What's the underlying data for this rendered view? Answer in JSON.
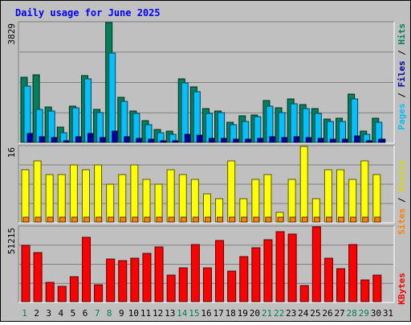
{
  "title": "Daily usage for June 2025",
  "colors": {
    "background": "#c0c0c0",
    "title": "#0000ff",
    "hits": "#00805c",
    "files": "#00c0ff",
    "pages": "#0000a0",
    "visits": "#ffff00",
    "sites": "#ff8000",
    "kbytes": "#ff0000",
    "weekend_day": "#00805c",
    "weekday": "#000000"
  },
  "chart_data": [
    {
      "type": "bar",
      "panel": "hits-files-pages",
      "max_label": "3829",
      "ylim": [
        0,
        3829
      ],
      "x": [
        1,
        2,
        3,
        4,
        5,
        6,
        7,
        8,
        9,
        10,
        11,
        12,
        13,
        14,
        15,
        16,
        17,
        18,
        19,
        20,
        21,
        22,
        23,
        24,
        25,
        26,
        27,
        28,
        29,
        30
      ],
      "series": [
        {
          "name": "Hits",
          "values": [
            2070,
            2150,
            1130,
            480,
            1160,
            2140,
            1060,
            3829,
            1430,
            1000,
            690,
            400,
            360,
            2030,
            1780,
            1080,
            1000,
            640,
            850,
            880,
            1340,
            1110,
            1390,
            1200,
            1080,
            750,
            760,
            1540,
            350,
            760
          ]
        },
        {
          "name": "Files",
          "values": [
            1790,
            1060,
            1000,
            320,
            1100,
            2040,
            950,
            2840,
            1300,
            930,
            570,
            310,
            260,
            1910,
            1630,
            920,
            940,
            560,
            680,
            820,
            1150,
            950,
            1240,
            1070,
            930,
            680,
            680,
            1380,
            260,
            640
          ]
        },
        {
          "name": "Pages",
          "values": [
            290,
            170,
            150,
            50,
            180,
            270,
            160,
            370,
            190,
            140,
            100,
            60,
            50,
            260,
            230,
            140,
            140,
            90,
            110,
            120,
            170,
            150,
            180,
            160,
            140,
            110,
            110,
            200,
            50,
            110
          ]
        }
      ]
    },
    {
      "type": "bar",
      "panel": "visits-sites",
      "max_label": "16",
      "ylim": [
        0,
        16
      ],
      "x": [
        1,
        2,
        3,
        4,
        5,
        6,
        7,
        8,
        9,
        10,
        11,
        12,
        13,
        14,
        15,
        16,
        17,
        18,
        19,
        20,
        21,
        22,
        23,
        24,
        25,
        26,
        27,
        28,
        29,
        30
      ],
      "series": [
        {
          "name": "Visits",
          "values": [
            11,
            13,
            10,
            10,
            12,
            11,
            12,
            8,
            10,
            12,
            9,
            8,
            11,
            10,
            9,
            6,
            5,
            13,
            5,
            9,
            10,
            2,
            9,
            16,
            5,
            11,
            11,
            9,
            13,
            10
          ]
        },
        {
          "name": "Sites",
          "values": [
            1,
            1,
            1,
            1,
            1,
            1,
            1,
            1,
            1,
            1,
            1,
            1,
            1,
            1,
            1,
            1,
            1,
            1,
            1,
            1,
            1,
            1,
            1,
            1,
            1,
            1,
            1,
            1,
            1,
            1
          ]
        }
      ]
    },
    {
      "type": "bar",
      "panel": "kbytes",
      "max_label": "51215",
      "ylim": [
        0,
        51215
      ],
      "x": [
        1,
        2,
        3,
        4,
        5,
        6,
        7,
        8,
        9,
        10,
        11,
        12,
        13,
        14,
        15,
        16,
        17,
        18,
        19,
        20,
        21,
        22,
        23,
        24,
        25,
        26,
        27,
        28,
        29,
        30
      ],
      "series": [
        {
          "name": "KBytes",
          "values": [
            38400,
            33700,
            13100,
            10600,
            17300,
            44100,
            11600,
            29100,
            28200,
            29500,
            32800,
            37200,
            17900,
            23000,
            39100,
            23200,
            41800,
            21100,
            31100,
            37000,
            42400,
            48100,
            46000,
            10900,
            51215,
            30000,
            22400,
            39200,
            15000,
            18000
          ]
        }
      ]
    }
  ],
  "x_labels": [
    {
      "day": "1",
      "weekend": true
    },
    {
      "day": "2",
      "weekend": false
    },
    {
      "day": "3",
      "weekend": false
    },
    {
      "day": "4",
      "weekend": false
    },
    {
      "day": "5",
      "weekend": false
    },
    {
      "day": "6",
      "weekend": false
    },
    {
      "day": "7",
      "weekend": true
    },
    {
      "day": "8",
      "weekend": true
    },
    {
      "day": "9",
      "weekend": false
    },
    {
      "day": "10",
      "weekend": false
    },
    {
      "day": "11",
      "weekend": false
    },
    {
      "day": "12",
      "weekend": false
    },
    {
      "day": "13",
      "weekend": false
    },
    {
      "day": "14",
      "weekend": true
    },
    {
      "day": "15",
      "weekend": true
    },
    {
      "day": "16",
      "weekend": false
    },
    {
      "day": "17",
      "weekend": false
    },
    {
      "day": "18",
      "weekend": false
    },
    {
      "day": "19",
      "weekend": false
    },
    {
      "day": "20",
      "weekend": false
    },
    {
      "day": "21",
      "weekend": true
    },
    {
      "day": "22",
      "weekend": true
    },
    {
      "day": "23",
      "weekend": false
    },
    {
      "day": "24",
      "weekend": false
    },
    {
      "day": "25",
      "weekend": false
    },
    {
      "day": "26",
      "weekend": false
    },
    {
      "day": "27",
      "weekend": false
    },
    {
      "day": "28",
      "weekend": true
    },
    {
      "day": "29",
      "weekend": true
    },
    {
      "day": "30",
      "weekend": false
    },
    {
      "day": "31",
      "weekend": false
    }
  ],
  "right_labels": {
    "pages": "Pages",
    "slash1": " / ",
    "files": "Files",
    "slash2": " / ",
    "hits": "Hits",
    "sites": "Sites",
    "slash3": " / ",
    "visits": "Visits",
    "kbytes": "KBytes"
  }
}
